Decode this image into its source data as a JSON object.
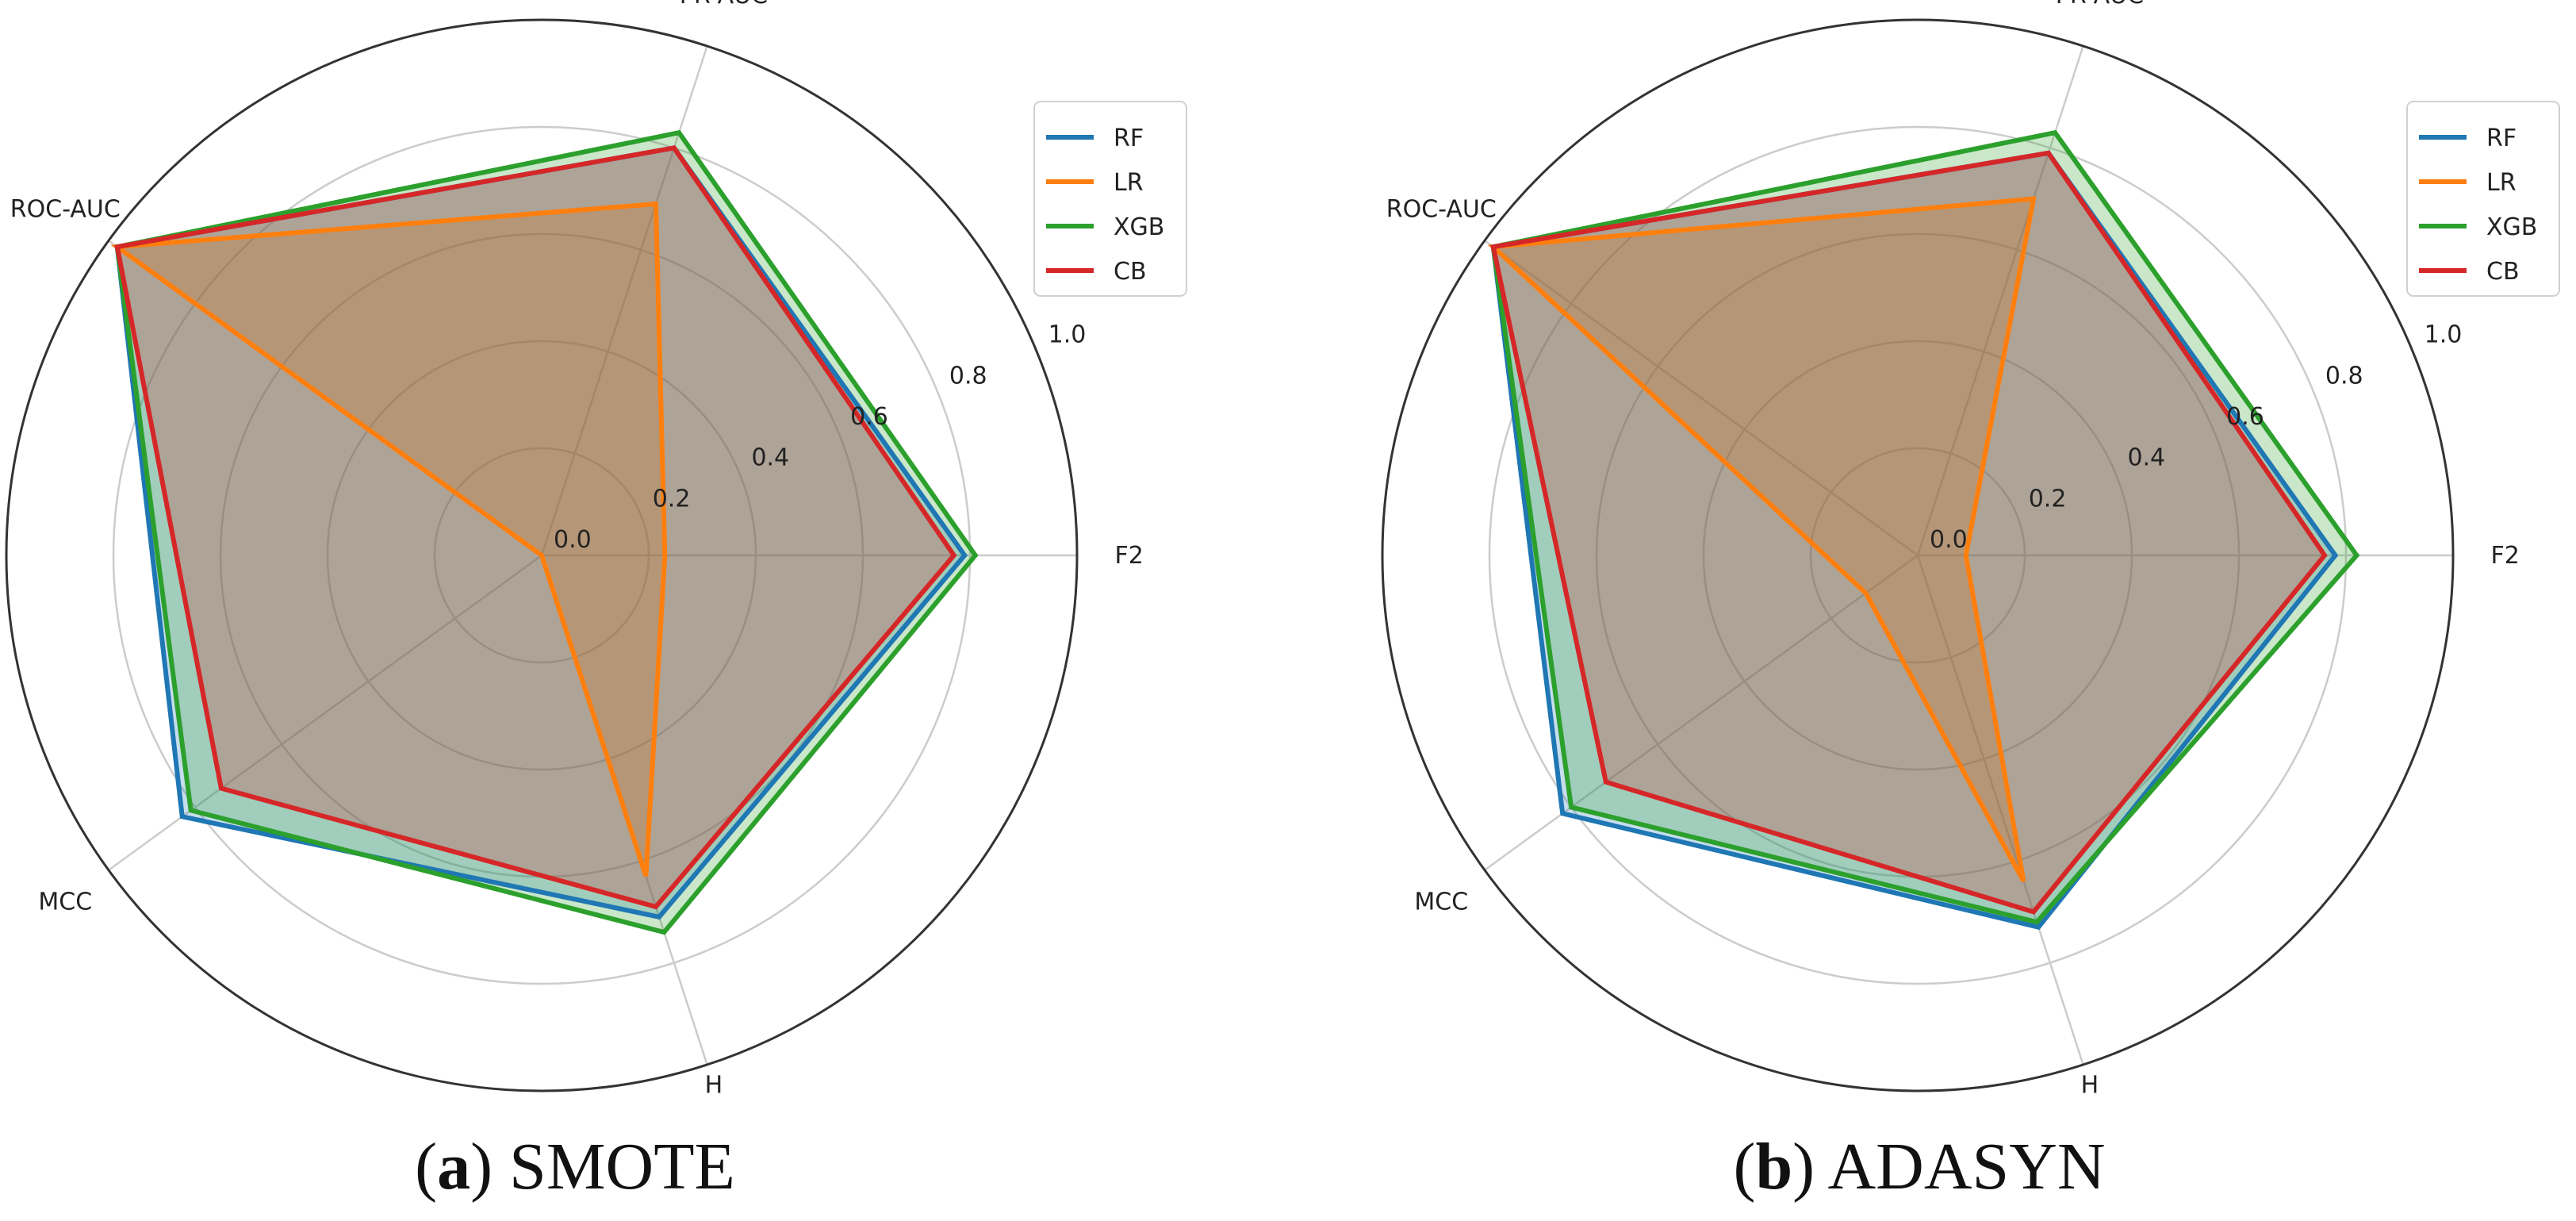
{
  "chart_data": [
    {
      "type": "radar",
      "caption_letter": "a",
      "caption_text": "SMOTE",
      "axes": [
        "F2",
        "PR-AUC",
        "ROC-AUC",
        "MCC",
        "H"
      ],
      "rlim": [
        0,
        1.0
      ],
      "rticks": [
        "0.0",
        "0.2",
        "0.4",
        "0.6",
        "0.8",
        "1.0"
      ],
      "grid": true,
      "legend": "top-right",
      "series": [
        {
          "name": "RF",
          "color": "#1f77b4",
          "values": [
            0.79,
            0.8,
            0.98,
            0.83,
            0.71
          ]
        },
        {
          "name": "LR",
          "color": "#ff7f0e",
          "values": [
            0.23,
            0.69,
            0.98,
            0.0,
            0.63
          ]
        },
        {
          "name": "XGB",
          "color": "#2ca02c",
          "values": [
            0.81,
            0.83,
            0.98,
            0.81,
            0.74
          ]
        },
        {
          "name": "CB",
          "color": "#d62728",
          "values": [
            0.77,
            0.8,
            0.98,
            0.74,
            0.69
          ]
        }
      ]
    },
    {
      "type": "radar",
      "caption_letter": "b",
      "caption_text": "ADASYN",
      "axes": [
        "F2",
        "PR-AUC",
        "ROC-AUC",
        "MCC",
        "H"
      ],
      "rlim": [
        0,
        1.0
      ],
      "rticks": [
        "0.0",
        "0.2",
        "0.4",
        "0.6",
        "0.8",
        "1.0"
      ],
      "grid": true,
      "legend": "top-right",
      "series": [
        {
          "name": "RF",
          "color": "#1f77b4",
          "values": [
            0.78,
            0.79,
            0.98,
            0.82,
            0.73
          ]
        },
        {
          "name": "LR",
          "color": "#ff7f0e",
          "values": [
            0.09,
            0.7,
            0.98,
            0.12,
            0.64
          ]
        },
        {
          "name": "XGB",
          "color": "#2ca02c",
          "values": [
            0.82,
            0.83,
            0.98,
            0.8,
            0.72
          ]
        },
        {
          "name": "CB",
          "color": "#d62728",
          "values": [
            0.76,
            0.79,
            0.98,
            0.72,
            0.7
          ]
        }
      ]
    }
  ]
}
